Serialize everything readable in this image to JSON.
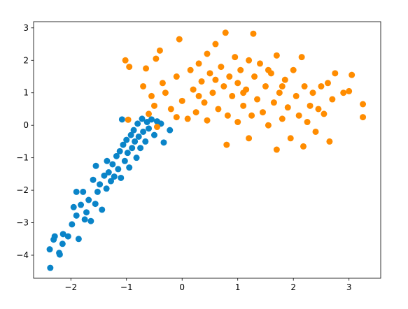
{
  "chart_data": {
    "type": "scatter",
    "xlim": [
      -2.67,
      3.57
    ],
    "ylim": [
      -4.71,
      3.19
    ],
    "xticks": [
      {
        "value": -2,
        "label": "−2"
      },
      {
        "value": -1,
        "label": "−1"
      },
      0,
      1,
      2,
      3
    ],
    "yticks": [
      {
        "value": -4,
        "label": "−4"
      },
      {
        "value": -3,
        "label": "−3"
      },
      {
        "value": -2,
        "label": "−2"
      },
      {
        "value": -1,
        "label": "−1"
      },
      0,
      1,
      2,
      3
    ],
    "series": [
      {
        "color": "#0a84c8",
        "x": [
          -2.37,
          -2.38,
          -2.29,
          -2.31,
          -2.2,
          -2.21,
          -2.15,
          -2.14,
          -2.05,
          -1.98,
          -1.95,
          -1.9,
          -1.86,
          -1.82,
          -1.78,
          -1.72,
          -1.68,
          -1.64,
          -1.6,
          -1.56,
          -1.52,
          -1.48,
          -1.44,
          -1.4,
          -1.36,
          -1.32,
          -1.28,
          -1.25,
          -1.22,
          -1.18,
          -1.15,
          -1.12,
          -1.1,
          -1.06,
          -1.03,
          -1.0,
          -0.98,
          -0.95,
          -0.92,
          -0.9,
          -0.87,
          -0.85,
          -0.82,
          -0.8,
          -0.78,
          -0.75,
          -0.72,
          -0.7,
          -0.66,
          -0.63,
          -0.6,
          -0.55,
          -0.5,
          -0.45,
          -0.38,
          -0.22,
          -0.33,
          -1.08,
          -1.35,
          -1.55,
          -1.9,
          -1.75
        ],
        "y": [
          -4.39,
          -3.82,
          -3.42,
          -3.52,
          -3.98,
          -3.93,
          -3.65,
          -3.35,
          -3.42,
          -3.05,
          -2.52,
          -2.78,
          -3.5,
          -2.45,
          -2.05,
          -2.68,
          -2.3,
          -2.95,
          -1.68,
          -2.42,
          -2.05,
          -1.82,
          -2.6,
          -1.55,
          -1.95,
          -1.45,
          -1.72,
          -1.2,
          -1.58,
          -0.95,
          -1.35,
          -0.8,
          -1.62,
          -0.6,
          -1.1,
          -0.45,
          -0.85,
          -1.3,
          -0.3,
          -0.7,
          -0.15,
          -0.5,
          -1.0,
          0.05,
          -0.35,
          -0.7,
          0.2,
          -0.2,
          -0.5,
          0.1,
          -0.1,
          0.18,
          -0.3,
          0.12,
          0.05,
          -0.15,
          -0.53,
          0.18,
          -1.1,
          -1.25,
          -2.05,
          -2.9
        ]
      },
      {
        "color": "#ff8c00",
        "x": [
          -0.97,
          -0.6,
          -0.45,
          -0.5,
          -0.3,
          -0.2,
          -0.1,
          0.0,
          0.1,
          -0.1,
          -0.05,
          -1.02,
          -0.95,
          -0.65,
          -0.47,
          -0.4,
          -0.7,
          -0.55,
          -0.35,
          0.15,
          0.2,
          0.25,
          0.3,
          0.35,
          0.4,
          0.45,
          0.45,
          0.5,
          0.55,
          0.6,
          0.65,
          0.7,
          0.75,
          0.78,
          0.8,
          0.82,
          0.85,
          0.9,
          0.95,
          1.0,
          1.0,
          1.05,
          1.1,
          1.15,
          1.2,
          1.2,
          1.25,
          1.3,
          1.28,
          1.35,
          1.4,
          1.45,
          1.5,
          1.55,
          1.6,
          1.65,
          1.7,
          1.7,
          1.75,
          1.8,
          1.85,
          1.9,
          1.95,
          2.0,
          2.05,
          2.1,
          2.15,
          2.18,
          2.2,
          2.25,
          2.3,
          2.35,
          2.4,
          2.45,
          2.5,
          2.55,
          2.62,
          2.65,
          2.7,
          2.75,
          2.9,
          3.0,
          3.05,
          3.25,
          3.25,
          1.55,
          0.6,
          0.3,
          1.1,
          1.8
        ],
        "y": [
          0.17,
          0.35,
          -0.05,
          0.6,
          1.0,
          0.5,
          0.25,
          0.75,
          0.2,
          1.5,
          2.65,
          2.0,
          1.8,
          1.75,
          2.05,
          2.3,
          1.2,
          0.9,
          1.3,
          1.7,
          1.1,
          0.4,
          1.9,
          1.35,
          0.7,
          2.2,
          0.15,
          1.6,
          1.0,
          2.5,
          0.5,
          1.8,
          1.2,
          2.85,
          -0.6,
          0.3,
          1.5,
          0.9,
          2.1,
          1.3,
          0.1,
          1.7,
          0.6,
          1.1,
          2.0,
          -0.4,
          0.3,
          1.5,
          2.82,
          0.8,
          1.9,
          0.4,
          1.2,
          0.0,
          1.6,
          0.7,
          -0.75,
          2.15,
          1.0,
          0.2,
          1.4,
          0.55,
          -0.4,
          1.7,
          0.9,
          0.3,
          2.1,
          -0.65,
          1.2,
          0.1,
          0.6,
          1.0,
          -0.2,
          0.5,
          1.2,
          0.35,
          1.3,
          -0.5,
          0.8,
          1.6,
          1.0,
          1.05,
          1.55,
          0.65,
          0.25,
          1.7,
          1.4,
          0.9,
          1.0,
          1.2
        ]
      }
    ]
  }
}
